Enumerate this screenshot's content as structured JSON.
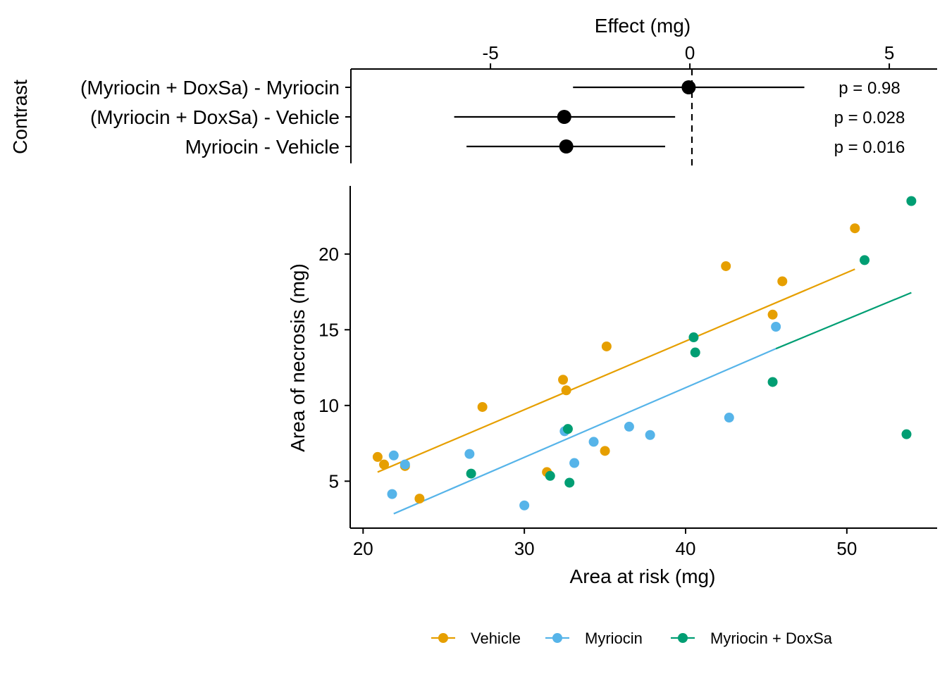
{
  "chart_data": [
    {
      "type": "forest",
      "xlabel": "Effect (mg)",
      "ylabel": "Contrast",
      "xlim": [
        -8.5,
        6.2
      ],
      "xticks": [
        -5,
        0,
        5
      ],
      "xtick_labels": [
        "-5",
        "0",
        "5"
      ],
      "reference_line": 0,
      "rows": [
        {
          "label": "(Myriocin + DoxSa) - Myriocin",
          "estimate": -0.03,
          "lower": -2.93,
          "upper": 2.87,
          "p_label": "p =  0.98"
        },
        {
          "label": "(Myriocin + DoxSa) - Vehicle",
          "estimate": -3.15,
          "lower": -5.91,
          "upper": -0.37,
          "p_label": "p =  0.028"
        },
        {
          "label": "Myriocin - Vehicle",
          "estimate": -3.1,
          "lower": -5.6,
          "upper": -0.62,
          "p_label": "p =  0.016"
        }
      ]
    },
    {
      "type": "scatter",
      "xlabel": "Area at risk (mg)",
      "ylabel": "Area of necrosis (mg)",
      "xlim": [
        19.2,
        55.6
      ],
      "ylim": [
        1.9,
        24.5
      ],
      "xticks": [
        20,
        30,
        40,
        50
      ],
      "xtick_labels": [
        "20",
        "30",
        "40",
        "50"
      ],
      "yticks": [
        5,
        10,
        15,
        20
      ],
      "ytick_labels": [
        "5",
        "10",
        "15",
        "20"
      ],
      "legend_position": "bottom",
      "series": [
        {
          "name": "Vehicle",
          "color": "#E69F00",
          "points": [
            [
              20.9,
              6.6
            ],
            [
              21.3,
              6.1
            ],
            [
              22.6,
              6.0
            ],
            [
              23.5,
              3.85
            ],
            [
              27.4,
              9.9
            ],
            [
              31.4,
              5.6
            ],
            [
              32.4,
              11.7
            ],
            [
              32.6,
              11.0
            ],
            [
              35.0,
              7.0
            ],
            [
              35.1,
              13.9
            ],
            [
              42.5,
              19.2
            ],
            [
              45.4,
              16.0
            ],
            [
              46.0,
              18.2
            ],
            [
              50.5,
              21.7
            ]
          ],
          "fit": [
            [
              20.9,
              5.6
            ],
            [
              50.5,
              19.0
            ]
          ]
        },
        {
          "name": "Myriocin",
          "color": "#56B4E9",
          "points": [
            [
              21.8,
              4.15
            ],
            [
              21.9,
              6.7
            ],
            [
              22.6,
              6.1
            ],
            [
              26.6,
              6.8
            ],
            [
              30.0,
              3.4
            ],
            [
              32.5,
              8.3
            ],
            [
              33.1,
              6.2
            ],
            [
              34.3,
              7.6
            ],
            [
              36.5,
              8.6
            ],
            [
              37.8,
              8.05
            ],
            [
              42.7,
              9.2
            ],
            [
              45.6,
              15.2
            ]
          ],
          "fit": [
            [
              21.9,
              2.85
            ],
            [
              45.6,
              13.75
            ]
          ]
        },
        {
          "name": "Myriocin + DoxSa",
          "color": "#009E73",
          "points": [
            [
              26.7,
              5.5
            ],
            [
              31.6,
              5.35
            ],
            [
              32.7,
              8.45
            ],
            [
              32.8,
              4.9
            ],
            [
              40.5,
              14.5
            ],
            [
              40.6,
              13.5
            ],
            [
              45.4,
              11.55
            ],
            [
              51.1,
              19.6
            ],
            [
              53.7,
              8.1
            ],
            [
              54.0,
              23.5
            ]
          ],
          "fit": [
            [
              45.6,
              13.75
            ],
            [
              54.0,
              17.45
            ]
          ]
        }
      ]
    }
  ]
}
